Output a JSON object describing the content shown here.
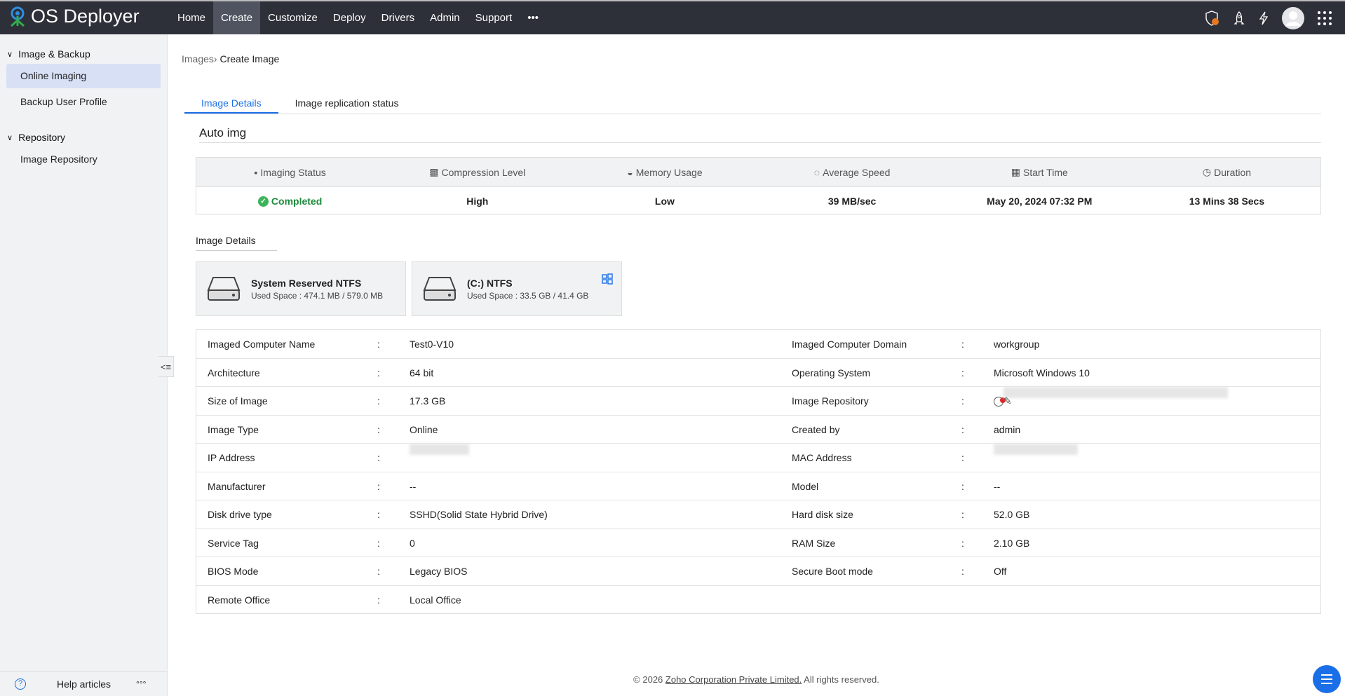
{
  "app": {
    "name": "OS Deployer"
  },
  "nav": {
    "items": [
      "Home",
      "Create",
      "Customize",
      "Deploy",
      "Drivers",
      "Admin",
      "Support"
    ],
    "active": "Create",
    "more": "•••"
  },
  "sidebar": {
    "groups": [
      {
        "label": "Image & Backup",
        "items": [
          "Online Imaging",
          "Backup User Profile"
        ]
      },
      {
        "label": "Repository",
        "items": [
          "Image Repository"
        ]
      }
    ],
    "active": "Online Imaging",
    "help": "Help articles",
    "help_more": "°°°"
  },
  "breadcrumb": {
    "parent": "Images",
    "sep": "›",
    "current": "Create Image"
  },
  "tabs": [
    "Image Details",
    "Image replication status"
  ],
  "image_name": "Auto img",
  "status": {
    "headers": [
      "Imaging Status",
      "Compression Level",
      "Memory Usage",
      "Average Speed",
      "Start Time",
      "Duration"
    ],
    "values": [
      "Completed",
      "High",
      "Low",
      "39 MB/sec",
      "May 20, 2024 07:32 PM",
      "13 Mins 38 Secs"
    ],
    "success_color": "#1e8a3c"
  },
  "image_details_label": "Image Details",
  "disks": [
    {
      "name": "System Reserved NTFS",
      "used": "Used Space : 474.1 MB / 579.0 MB"
    },
    {
      "name": "(C:) NTFS",
      "used": "Used Space : 33.5 GB / 41.4 GB",
      "os_icon": "windows-icon"
    }
  ],
  "details": [
    {
      "l1": "Imaged Computer Name",
      "v1": "Test0-V10",
      "l2": "Imaged Computer Domain",
      "v2": "workgroup"
    },
    {
      "l1": "Architecture",
      "v1": "64 bit",
      "l2": "Operating System",
      "v2": "Microsoft Windows 10"
    },
    {
      "l1": "Size of Image",
      "v1": "17.3 GB",
      "l2": "Image Repository",
      "v2": ""
    },
    {
      "l1": "Image Type",
      "v1": "Online",
      "l2": "Created by",
      "v2": "admin"
    },
    {
      "l1": "IP Address",
      "v1": "",
      "l2": "MAC Address",
      "v2": ""
    },
    {
      "l1": "Manufacturer",
      "v1": "--",
      "l2": "Model",
      "v2": "--"
    },
    {
      "l1": "Disk drive type",
      "v1": "SSHD(Solid State Hybrid Drive)",
      "l2": "Hard disk size",
      "v2": "52.0 GB"
    },
    {
      "l1": "Service Tag",
      "v1": "0",
      "l2": "RAM Size",
      "v2": "2.10 GB"
    },
    {
      "l1": "BIOS Mode",
      "v1": "Legacy BIOS",
      "l2": "Secure Boot mode",
      "v2": "Off"
    },
    {
      "l1": "Remote Office",
      "v1": "Local Office",
      "l2": "",
      "v2": ""
    }
  ],
  "colon": ":",
  "footer": {
    "pre": "© 2026 ",
    "link": "Zoho Corporation Private Limited.",
    "post": " All rights reserved."
  },
  "colors": {
    "accent": "#1a6ee8",
    "topbar": "#2e3039",
    "alert": "#e87722"
  }
}
